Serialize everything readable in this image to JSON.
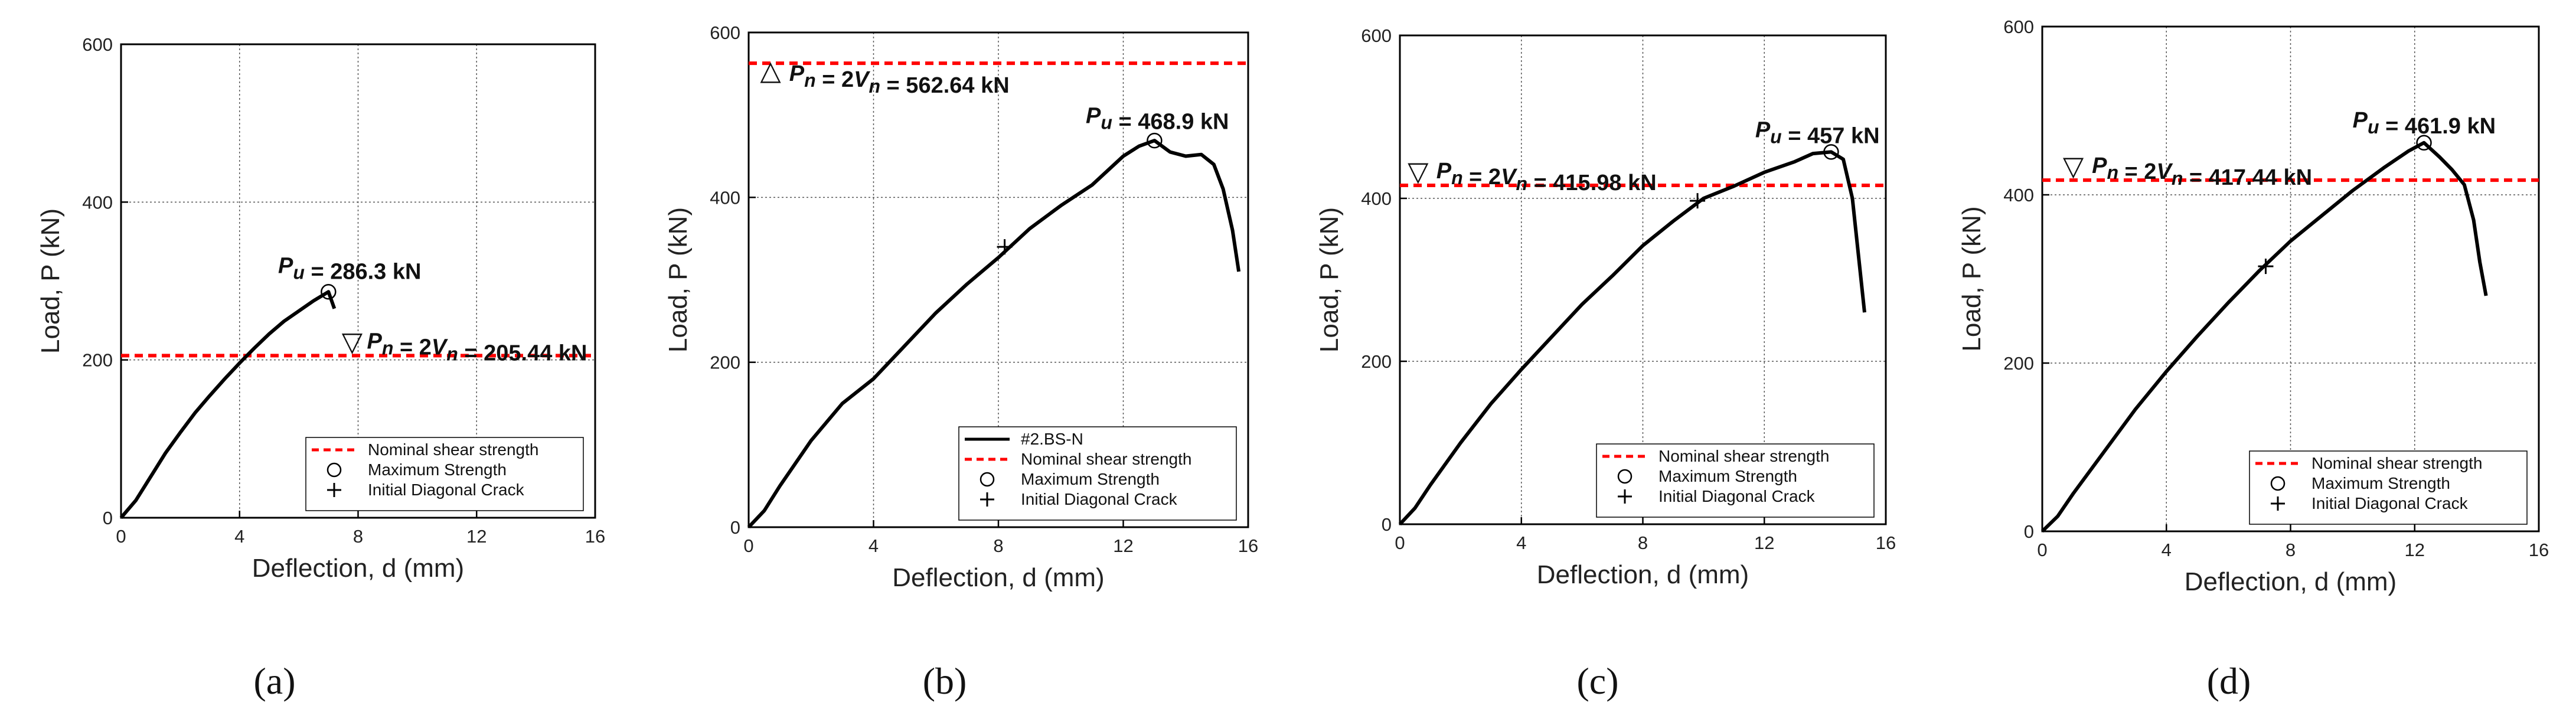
{
  "colors": {
    "curve": "#000000",
    "nominal_line": "#ff0000",
    "grid": "#555555",
    "axis": "#000000"
  },
  "chart_data": [
    {
      "type": "line",
      "panel_label": "(a)",
      "xlabel": "Deflection, d (mm)",
      "ylabel": "Load, P (kN)",
      "xlim": [
        0,
        16
      ],
      "ylim": [
        0,
        600
      ],
      "xticks": [
        0,
        4,
        8,
        12,
        16
      ],
      "yticks": [
        0,
        200,
        400,
        600
      ],
      "grid": true,
      "legend_position": "lower-right",
      "legend": [
        {
          "label": "Nominal shear strength",
          "marker": "dashed-line"
        },
        {
          "label": "Maximum Strength",
          "marker": "circle"
        },
        {
          "label": "Initial Diagonal Crack",
          "marker": "plus"
        }
      ],
      "curve": {
        "x": [
          0,
          0.5,
          1,
          1.5,
          2,
          2.5,
          3,
          3.5,
          4,
          4.5,
          5,
          5.5,
          6,
          6.5,
          7.0,
          7.2
        ],
        "y": [
          0,
          22,
          52,
          82,
          108,
          133,
          155,
          176,
          196,
          215,
          233,
          249,
          262,
          275,
          286.3,
          265
        ]
      },
      "nominal": {
        "value": 205.44,
        "symbol": "▽",
        "symbol_x": 7.8,
        "label_x": 8.3,
        "label": "Pn = 2Vn = 205.44 kN"
      },
      "max_point": {
        "x": 7.0,
        "y": 286.3,
        "label": "Pu = 286.3 kN",
        "label_x": 5.3,
        "label_y": 310
      }
    },
    {
      "type": "line",
      "panel_label": "(b)",
      "xlabel": "Deflection, d (mm)",
      "ylabel": "Load, P (kN)",
      "xlim": [
        0,
        16
      ],
      "ylim": [
        0,
        600
      ],
      "xticks": [
        0,
        4,
        8,
        12,
        16
      ],
      "yticks": [
        0,
        200,
        400,
        600
      ],
      "grid": true,
      "legend_position": "lower-right",
      "legend": [
        {
          "label": "#2.BS-N",
          "marker": "solid-line"
        },
        {
          "label": "Nominal shear strength",
          "marker": "dashed-line"
        },
        {
          "label": "Maximum Strength",
          "marker": "circle"
        },
        {
          "label": "Initial Diagonal Crack",
          "marker": "plus"
        }
      ],
      "curve": {
        "x": [
          0,
          0.5,
          1,
          2,
          3,
          4,
          5,
          6,
          7,
          8,
          9,
          10,
          11,
          12,
          12.5,
          13.0,
          13.5,
          14,
          14.5,
          14.9,
          15.2,
          15.5,
          15.7
        ],
        "y": [
          0,
          20,
          50,
          105,
          150,
          180,
          220,
          260,
          295,
          327,
          362,
          390,
          415,
          450,
          462,
          468.9,
          455,
          450,
          452,
          440,
          410,
          360,
          310
        ]
      },
      "nominal": {
        "value": 562.64,
        "symbol": "△",
        "symbol_x": 0.7,
        "label_x": 1.3,
        "label": "Pn = 2Vn = 562.64 kN"
      },
      "max_point": {
        "x": 13.0,
        "y": 468.9,
        "label": "Pu = 468.9 kN",
        "label_x": 10.8,
        "label_y": 490
      },
      "crack_point": {
        "x": 8.2,
        "y": 340
      }
    },
    {
      "type": "line",
      "panel_label": "(c)",
      "xlabel": "Deflection, d (mm)",
      "ylabel": "Load, P (kN)",
      "xlim": [
        0,
        16
      ],
      "ylim": [
        0,
        600
      ],
      "xticks": [
        0,
        4,
        8,
        12,
        16
      ],
      "yticks": [
        0,
        200,
        400,
        600
      ],
      "grid": true,
      "legend_position": "lower-right",
      "legend": [
        {
          "label": "Nominal shear strength",
          "marker": "dashed-line"
        },
        {
          "label": "Maximum Strength",
          "marker": "circle"
        },
        {
          "label": "Initial Diagonal Crack",
          "marker": "plus"
        }
      ],
      "curve": {
        "x": [
          0,
          0.5,
          1,
          2,
          3,
          4,
          5,
          6,
          7,
          8,
          9,
          10,
          11,
          12,
          13,
          13.6,
          14.2,
          14.6,
          14.9,
          15.1,
          15.3
        ],
        "y": [
          0,
          20,
          48,
          100,
          148,
          190,
          230,
          270,
          305,
          342,
          372,
          400,
          415,
          432,
          445,
          455,
          457,
          448,
          400,
          330,
          260
        ]
      },
      "nominal": {
        "value": 415.98,
        "symbol": "▽",
        "symbol_x": 0.6,
        "label_x": 1.2,
        "label": "Pn = 2Vn = 415.98 kN"
      },
      "max_point": {
        "x": 14.2,
        "y": 457,
        "label": "Pu = 457 kN",
        "label_x": 11.7,
        "label_y": 475
      },
      "crack_point": {
        "x": 9.8,
        "y": 397
      }
    },
    {
      "type": "line",
      "panel_label": "(d)",
      "xlabel": "Deflection, d (mm)",
      "ylabel": "Load, P (kN)",
      "xlim": [
        0,
        16
      ],
      "ylim": [
        0,
        600
      ],
      "xticks": [
        0,
        4,
        8,
        12,
        16
      ],
      "yticks": [
        0,
        200,
        400,
        600
      ],
      "grid": true,
      "legend_position": "lower-right",
      "legend": [
        {
          "label": "Nominal shear strength",
          "marker": "dashed-line"
        },
        {
          "label": "Maximum Strength",
          "marker": "circle"
        },
        {
          "label": "Initial Diagonal Crack",
          "marker": "plus"
        }
      ],
      "curve": {
        "x": [
          0,
          0.5,
          1,
          2,
          3,
          4,
          5,
          6,
          7,
          8,
          9,
          10,
          11,
          11.8,
          12.3,
          12.8,
          13.2,
          13.6,
          13.9,
          14.1,
          14.3
        ],
        "y": [
          0,
          18,
          45,
          95,
          145,
          190,
          232,
          272,
          310,
          345,
          375,
          405,
          432,
          452,
          461.9,
          445,
          430,
          412,
          370,
          320,
          280
        ]
      },
      "nominal": {
        "value": 417.44,
        "symbol": "▽",
        "symbol_x": 1.0,
        "label_x": 1.6,
        "label": "Pn = 2Vn = 417.44 kN"
      },
      "max_point": {
        "x": 12.3,
        "y": 461.9,
        "label": "Pu = 461.9 kN",
        "label_x": 10.0,
        "label_y": 480
      },
      "crack_point": {
        "x": 7.2,
        "y": 315
      }
    }
  ]
}
